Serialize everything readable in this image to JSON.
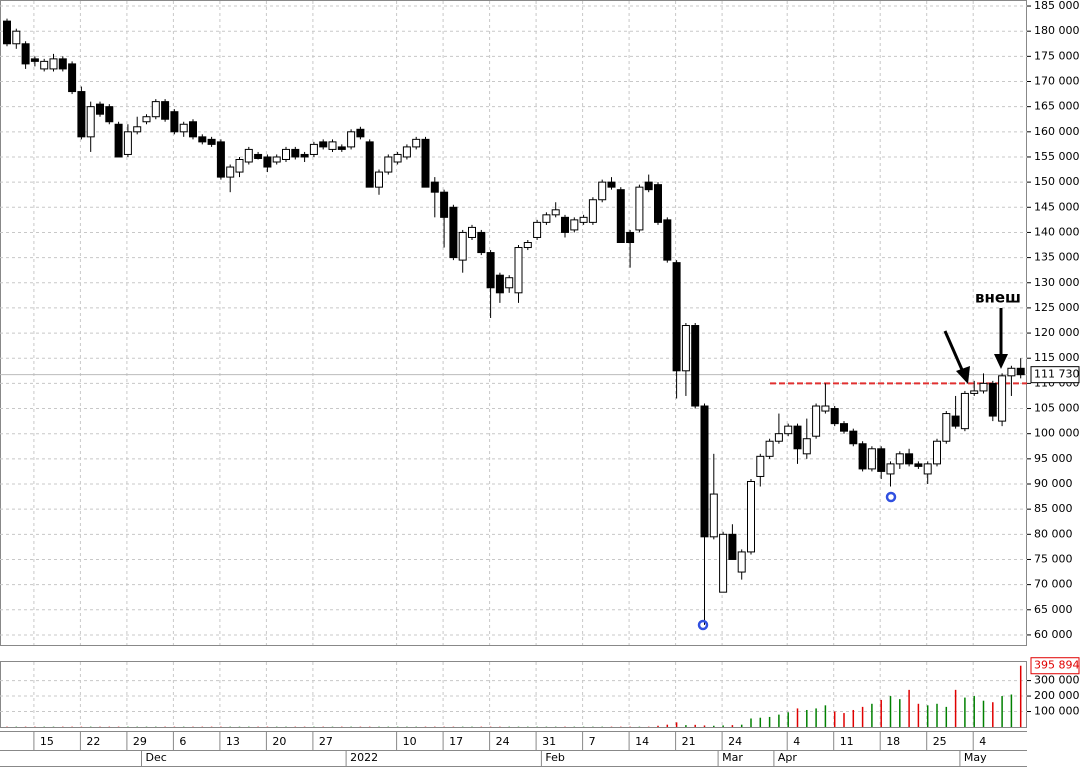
{
  "chart_data": {
    "type": "candlestick",
    "categories": [
      null,
      null,
      null,
      "15",
      null,
      null,
      null,
      null,
      "22",
      null,
      null,
      null,
      null,
      "29",
      null,
      null,
      null,
      null,
      "6",
      null,
      null,
      null,
      null,
      "13",
      null,
      null,
      null,
      null,
      "20",
      null,
      null,
      null,
      null,
      "27",
      null,
      null,
      null,
      null,
      null,
      null,
      null,
      null,
      "10",
      null,
      null,
      null,
      null,
      "17",
      null,
      null,
      null,
      null,
      "24",
      null,
      null,
      null,
      null,
      "31",
      null,
      null,
      null,
      null,
      "7",
      null,
      null,
      null,
      null,
      "14",
      null,
      null,
      null,
      null,
      "21",
      null,
      null,
      null,
      null,
      "24",
      null,
      null,
      null,
      null,
      null,
      null,
      "4",
      null,
      null,
      null,
      null,
      "11",
      null,
      null,
      null,
      null,
      "18",
      null,
      null,
      null,
      null,
      "25",
      null,
      null,
      null,
      null,
      "4",
      null,
      null,
      null,
      null,
      null
    ],
    "months": [
      null,
      null,
      null,
      null,
      null,
      null,
      null,
      null,
      null,
      null,
      null,
      null,
      null,
      null,
      null,
      "Dec",
      null,
      null,
      null,
      null,
      null,
      null,
      null,
      null,
      null,
      null,
      null,
      null,
      null,
      null,
      null,
      null,
      null,
      null,
      null,
      null,
      null,
      "2022",
      null,
      null,
      null,
      null,
      null,
      null,
      null,
      null,
      null,
      null,
      null,
      null,
      null,
      null,
      null,
      null,
      null,
      null,
      null,
      null,
      "Feb",
      null,
      null,
      null,
      null,
      null,
      null,
      null,
      null,
      null,
      null,
      null,
      null,
      null,
      null,
      null,
      null,
      null,
      null,
      "Mar",
      null,
      null,
      null,
      null,
      null,
      "Apr",
      null,
      null,
      null,
      null,
      null,
      null,
      null,
      null,
      null,
      null,
      null,
      null,
      null,
      null,
      null,
      null,
      null,
      null,
      null,
      "May",
      null,
      null,
      null,
      null,
      null,
      null
    ],
    "open": [
      182000,
      177500,
      177500,
      174500,
      172500,
      172500,
      174500,
      173500,
      168000,
      159000,
      165500,
      165000,
      161500,
      155500,
      160000,
      162000,
      163000,
      166000,
      164000,
      160000,
      162000,
      159000,
      158500,
      158000,
      151000,
      152000,
      154000,
      155500,
      155000,
      154000,
      154500,
      156500,
      155500,
      155500,
      158000,
      156500,
      157000,
      157000,
      160500,
      158000,
      149000,
      152000,
      154000,
      155000,
      157000,
      158500,
      150000,
      148000,
      145000,
      134500,
      139000,
      140000,
      136000,
      131500,
      129000,
      128000,
      137000,
      139000,
      142000,
      143500,
      143000,
      140500,
      142000,
      142000,
      146500,
      150000,
      148500,
      140000,
      140500,
      150000,
      149500,
      142500,
      134000,
      112500,
      121500,
      105500,
      79500,
      68500,
      80000,
      72500,
      76500,
      91500,
      95500,
      98500,
      100000,
      101500,
      96000,
      99500,
      104500,
      105000,
      102000,
      100500,
      98000,
      93000,
      97000,
      92000,
      94000,
      96000,
      94000,
      92000,
      94000,
      98500,
      103500,
      101000,
      108000,
      108500,
      110000,
      102500,
      111500,
      113000
    ],
    "high": [
      182500,
      180500,
      178000,
      175000,
      174500,
      175500,
      175000,
      174000,
      169000,
      166000,
      166000,
      165500,
      162000,
      161500,
      163000,
      163500,
      166500,
      166500,
      164500,
      162000,
      162500,
      159500,
      159000,
      158500,
      153500,
      155000,
      157000,
      156000,
      155500,
      155500,
      157000,
      157000,
      156000,
      158000,
      158500,
      158500,
      157500,
      160500,
      161000,
      158500,
      152500,
      155500,
      156000,
      157500,
      159000,
      159000,
      151000,
      148500,
      145500,
      140500,
      141500,
      140500,
      136500,
      132000,
      131500,
      137500,
      138500,
      142500,
      144000,
      146000,
      143500,
      143000,
      143500,
      147000,
      150500,
      151000,
      149000,
      140500,
      149500,
      151500,
      150000,
      143000,
      134500,
      122000,
      122000,
      106000,
      96000,
      80500,
      82000,
      77000,
      91000,
      96000,
      99000,
      104000,
      102000,
      102000,
      103000,
      106000,
      110000,
      105500,
      102500,
      101000,
      98500,
      97500,
      97500,
      94500,
      96500,
      97000,
      94500,
      94500,
      99000,
      104500,
      107500,
      108500,
      110500,
      112000,
      110500,
      112000,
      113500,
      115000
    ],
    "low": [
      177000,
      176500,
      172500,
      173000,
      172000,
      172000,
      172000,
      167500,
      158500,
      156000,
      163000,
      161500,
      155000,
      155000,
      159500,
      161500,
      162500,
      162000,
      159500,
      159000,
      158500,
      157500,
      157000,
      150500,
      148000,
      151000,
      153500,
      154500,
      152000,
      153500,
      154000,
      154500,
      154000,
      155000,
      156500,
      156000,
      156000,
      156500,
      158500,
      149000,
      147500,
      151500,
      153500,
      154500,
      156500,
      149000,
      143000,
      137000,
      134500,
      132000,
      138500,
      135500,
      123000,
      126000,
      128000,
      126000,
      136500,
      138500,
      141500,
      143000,
      139000,
      140000,
      141500,
      141500,
      146000,
      148500,
      138000,
      133000,
      140000,
      148000,
      141500,
      134000,
      107000,
      107500,
      105000,
      62000,
      79000,
      68500,
      75000,
      71000,
      76000,
      89500,
      95000,
      98000,
      99500,
      94000,
      95000,
      99000,
      104000,
      101500,
      100000,
      97500,
      92500,
      92500,
      91000,
      89500,
      93000,
      93500,
      93000,
      90000,
      93500,
      98000,
      101000,
      100500,
      107500,
      108000,
      102500,
      101500,
      107500,
      111000
    ],
    "close": [
      177500,
      180000,
      173500,
      174000,
      174000,
      174500,
      172500,
      168000,
      159000,
      165000,
      163500,
      162000,
      155000,
      160000,
      161000,
      163000,
      166000,
      162500,
      160000,
      161500,
      159000,
      158000,
      157500,
      151000,
      153000,
      154500,
      156500,
      154700,
      153000,
      155000,
      156500,
      155000,
      155000,
      157500,
      157000,
      158000,
      156500,
      160000,
      159000,
      149000,
      152000,
      155000,
      155500,
      157000,
      158500,
      149000,
      148000,
      143000,
      135000,
      140000,
      141000,
      136000,
      129000,
      128000,
      131000,
      137000,
      138000,
      142000,
      143500,
      144500,
      140000,
      142500,
      143000,
      146500,
      150000,
      149000,
      138000,
      138000,
      149000,
      148500,
      142000,
      134500,
      112500,
      121500,
      105500,
      79500,
      88000,
      80000,
      75000,
      76500,
      90500,
      95500,
      98500,
      100000,
      101500,
      97000,
      99000,
      105500,
      105500,
      102000,
      100500,
      98000,
      93000,
      97000,
      92500,
      94000,
      96000,
      94000,
      93500,
      94000,
      98500,
      104000,
      101500,
      108000,
      108500,
      110000,
      103500,
      111500,
      113000,
      111730
    ],
    "volume": [
      2000,
      2000,
      2000,
      2000,
      2000,
      2000,
      2000,
      2000,
      2000,
      2000,
      2000,
      2000,
      2000,
      2000,
      2000,
      2000,
      2000,
      2000,
      2000,
      2000,
      2000,
      2000,
      2000,
      2000,
      2000,
      2000,
      2000,
      2000,
      2000,
      2000,
      2000,
      2000,
      2000,
      2000,
      2000,
      2000,
      2000,
      2000,
      2000,
      2000,
      2000,
      2000,
      2000,
      2000,
      2000,
      2000,
      2000,
      2000,
      2000,
      2000,
      2000,
      2000,
      2000,
      2000,
      2000,
      2000,
      2000,
      2000,
      2000,
      2000,
      2000,
      2000,
      2000,
      2000,
      2000,
      2000,
      2000,
      2000,
      2000,
      2000,
      8000,
      15000,
      30000,
      12000,
      14000,
      10000,
      8000,
      10000,
      12000,
      15000,
      55000,
      60000,
      65000,
      80000,
      95000,
      120000,
      110000,
      120000,
      140000,
      100000,
      90000,
      110000,
      130000,
      150000,
      175000,
      200000,
      180000,
      240000,
      150000,
      140000,
      150000,
      130000,
      240000,
      190000,
      200000,
      170000,
      160000,
      200000,
      210000,
      395894
    ],
    "up_color": "#008000",
    "down_color": "#e00000",
    "candle_color": "#000000",
    "ylim": [
      58000,
      186000
    ],
    "yticks": [
      {
        "value": 60000,
        "label": "60 000"
      },
      {
        "value": 65000,
        "label": "65 000"
      },
      {
        "value": 70000,
        "label": "70 000"
      },
      {
        "value": 75000,
        "label": "75 000"
      },
      {
        "value": 80000,
        "label": "80 000"
      },
      {
        "value": 85000,
        "label": "85 000"
      },
      {
        "value": 90000,
        "label": "90 000"
      },
      {
        "value": 95000,
        "label": "95 000"
      },
      {
        "value": 100000,
        "label": "100 000"
      },
      {
        "value": 105000,
        "label": "105 000"
      },
      {
        "value": 110000,
        "label": "110 000"
      },
      {
        "value": 115000,
        "label": "115 000"
      },
      {
        "value": 120000,
        "label": "120 000"
      },
      {
        "value": 125000,
        "label": "125 000"
      },
      {
        "value": 130000,
        "label": "130 000"
      },
      {
        "value": 135000,
        "label": "135 000"
      },
      {
        "value": 140000,
        "label": "140 000"
      },
      {
        "value": 145000,
        "label": "145 000"
      },
      {
        "value": 150000,
        "label": "150 000"
      },
      {
        "value": 155000,
        "label": "155 000"
      },
      {
        "value": 160000,
        "label": "160 000"
      },
      {
        "value": 165000,
        "label": "165 000"
      },
      {
        "value": 170000,
        "label": "170 000"
      },
      {
        "value": 175000,
        "label": "175 000"
      },
      {
        "value": 180000,
        "label": "180 000"
      },
      {
        "value": 185000,
        "label": "185 000"
      }
    ],
    "y2lim": [
      0,
      420000
    ],
    "y2ticks": [
      {
        "value": 100000,
        "label": "100 000"
      },
      {
        "value": 200000,
        "label": "200 000"
      },
      {
        "value": 300000,
        "label": "300 000"
      }
    ],
    "last_price": {
      "value": 111730,
      "label": "111 730"
    },
    "last_volume": {
      "value": 395894,
      "label": "395 894"
    },
    "reference_line": {
      "value": 110000,
      "color": "#e03030"
    },
    "annotation": "внеш",
    "grid": true
  }
}
